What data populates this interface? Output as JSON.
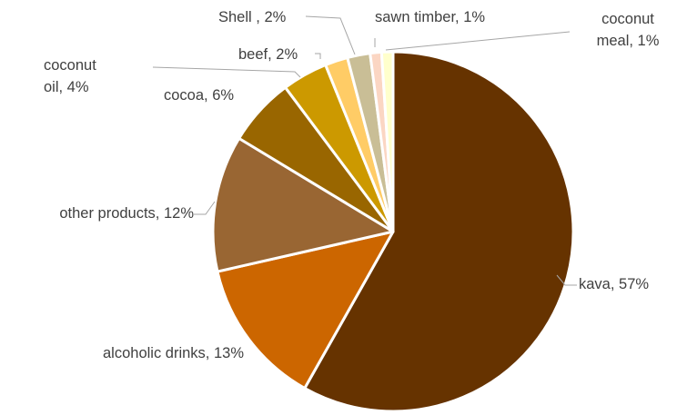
{
  "chart_data": {
    "type": "pie",
    "title": "",
    "legend": "none",
    "slices": [
      {
        "label": "kava",
        "value": 57,
        "display": "kava, 57%",
        "color": "#663300"
      },
      {
        "label": "alcoholic drinks",
        "value": 13,
        "display": "alcoholic drinks, 13%",
        "color": "#CC6600"
      },
      {
        "label": "other products",
        "value": 12,
        "display": "other products, 12%",
        "color": "#996633"
      },
      {
        "label": "cocoa",
        "value": 6,
        "display": "cocoa, 6%",
        "color": "#996600"
      },
      {
        "label": "coconut oil",
        "value": 4,
        "display": "coconut oil, 4%",
        "display_lines": [
          "coconut",
          "oil, 4%"
        ],
        "color": "#CC9900"
      },
      {
        "label": "beef",
        "value": 2,
        "display": "beef, 2%",
        "color": "#FFCC66"
      },
      {
        "label": "Shell",
        "value": 2,
        "display": "Shell , 2%",
        "color": "#C9BE96"
      },
      {
        "label": "sawn timber",
        "value": 1,
        "display": "sawn timber, 1%",
        "color": "#FBD6C3"
      },
      {
        "label": "coconut meal",
        "value": 1,
        "display": "coconut meal, 1%",
        "display_lines": [
          "coconut",
          "meal, 1%"
        ],
        "color": "#FFFFCC"
      }
    ]
  }
}
